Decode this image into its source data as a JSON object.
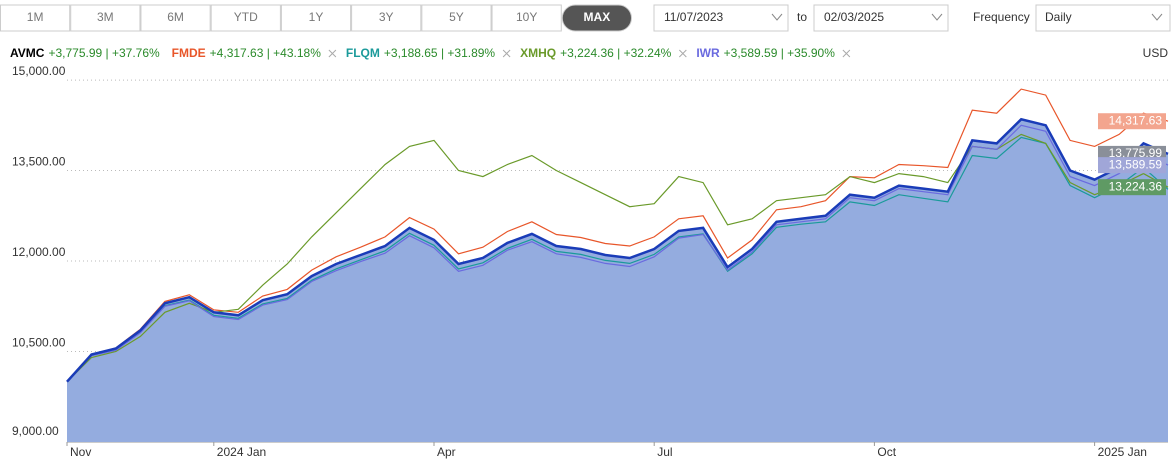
{
  "controls": {
    "ranges": [
      "1M",
      "3M",
      "6M",
      "YTD",
      "1Y",
      "3Y",
      "5Y",
      "10Y",
      "MAX"
    ],
    "selected": 8,
    "from": "11/07/2023",
    "to_label": "to",
    "to": "02/03/2025",
    "frequency_label": "Frequency",
    "frequency": "Daily"
  },
  "currency": "USD",
  "chart_data": {
    "type": "line",
    "categories": [
      "Nov",
      null,
      null,
      null,
      null,
      null,
      "2024 Jan",
      null,
      null,
      null,
      null,
      null,
      null,
      null,
      null,
      "Apr",
      null,
      null,
      null,
      null,
      null,
      null,
      null,
      null,
      "Jul",
      null,
      null,
      null,
      null,
      null,
      null,
      null,
      null,
      "Oct",
      null,
      null,
      null,
      null,
      null,
      null,
      null,
      null,
      "2025 Jan",
      null,
      null,
      null
    ],
    "ylim": [
      9000,
      15200
    ],
    "yticks": [
      {
        "value": 9000,
        "label": "9,000.00"
      },
      {
        "value": 10500,
        "label": "10,500.00"
      },
      {
        "value": 12000,
        "label": "12,000.00"
      },
      {
        "value": 13500,
        "label": "13,500.00"
      },
      {
        "value": 15000,
        "label": "15,000.00"
      }
    ],
    "grid": true,
    "series": [
      {
        "name": "AVMC",
        "change": "+3,775.99 | +37.76%",
        "color": "#1a3cb8",
        "area_color": "#94acdf",
        "area": true,
        "end_label": "13,775.99",
        "label_color": "#8a8f99",
        "values": [
          10000,
          10450,
          10550,
          10850,
          11300,
          11400,
          11150,
          11100,
          11350,
          11450,
          11750,
          11950,
          12100,
          12250,
          12550,
          12350,
          11950,
          12050,
          12300,
          12450,
          12250,
          12200,
          12100,
          12050,
          12200,
          12500,
          12550,
          11900,
          12200,
          12650,
          12700,
          12750,
          13100,
          13050,
          13250,
          13200,
          13150,
          14000,
          13950,
          14350,
          14250,
          13500,
          13350,
          13550,
          13950,
          13775.99
        ]
      },
      {
        "name": "FMDE",
        "change": "+4,317.63 | +43.18%",
        "color": "#e8562a",
        "end_label": "14,317.63",
        "label_color": "#f3a58e",
        "values": [
          10000,
          10450,
          10560,
          10870,
          11330,
          11440,
          11190,
          11150,
          11420,
          11530,
          11850,
          12070,
          12230,
          12400,
          12720,
          12530,
          12120,
          12230,
          12490,
          12650,
          12440,
          12390,
          12290,
          12250,
          12400,
          12700,
          12750,
          12050,
          12350,
          12850,
          12900,
          13000,
          13400,
          13380,
          13600,
          13580,
          13550,
          14500,
          14450,
          14850,
          14750,
          14000,
          13900,
          14100,
          14450,
          14317.63
        ]
      },
      {
        "name": "FLQM",
        "change": "+3,188.65 | +31.89%",
        "color": "#1a9a9a",
        "values": [
          10000,
          10440,
          10530,
          10820,
          11260,
          11350,
          11100,
          11050,
          11290,
          11380,
          11680,
          11870,
          12020,
          12170,
          12460,
          12260,
          11870,
          11970,
          12210,
          12360,
          12160,
          12110,
          12010,
          11960,
          12110,
          12400,
          12450,
          11830,
          12120,
          12560,
          12610,
          12650,
          12980,
          12920,
          13100,
          13040,
          12980,
          13750,
          13700,
          14050,
          13950,
          13250,
          13050,
          13250,
          13550,
          13188.65
        ]
      },
      {
        "name": "XMHQ",
        "change": "+3,224.36 | +32.24%",
        "color": "#6a9a2a",
        "end_label": "13,224.36",
        "label_color": "#5f9a64",
        "values": [
          10000,
          10400,
          10500,
          10750,
          11150,
          11300,
          11150,
          11200,
          11600,
          11950,
          12400,
          12800,
          13200,
          13600,
          13900,
          14000,
          13500,
          13400,
          13600,
          13750,
          13500,
          13300,
          13100,
          12900,
          12950,
          13400,
          13300,
          12600,
          12700,
          13000,
          13050,
          13100,
          13400,
          13300,
          13450,
          13400,
          13300,
          13900,
          13850,
          14100,
          13950,
          13300,
          13100,
          13250,
          13450,
          13224.36
        ]
      },
      {
        "name": "IWR",
        "change": "+3,589.59 | +35.90%",
        "color": "#6a6adf",
        "end_label": "13,589.59",
        "label_color": "#a0a6d8",
        "values": [
          10000,
          10430,
          10520,
          10810,
          11250,
          11340,
          11080,
          11030,
          11270,
          11360,
          11660,
          11840,
          11990,
          12130,
          12420,
          12220,
          11830,
          11930,
          12180,
          12320,
          12120,
          12060,
          11960,
          11910,
          12070,
          12380,
          12440,
          11850,
          12150,
          12600,
          12650,
          12700,
          13050,
          13000,
          13200,
          13150,
          13100,
          13900,
          13850,
          14250,
          14150,
          13400,
          13250,
          13450,
          13800,
          13589.59
        ]
      }
    ]
  }
}
